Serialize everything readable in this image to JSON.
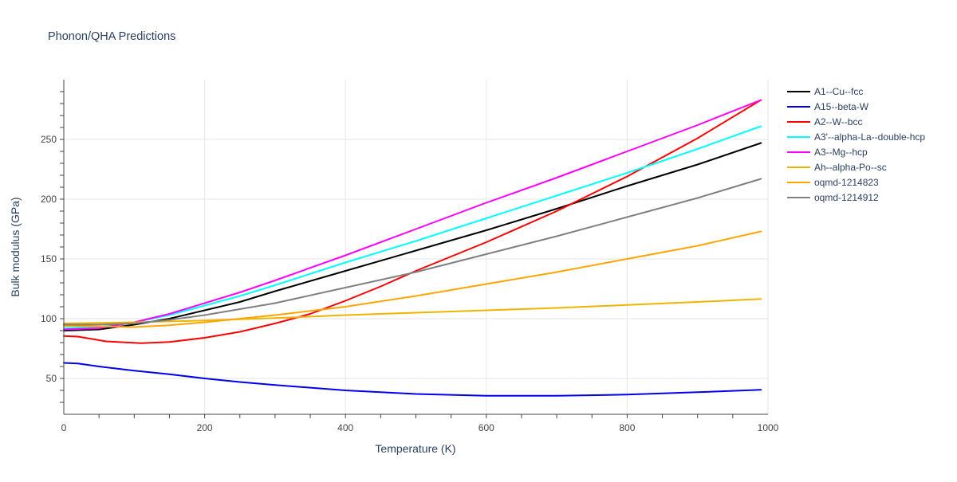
{
  "chart_data": {
    "type": "line",
    "title": "Phonon/QHA Predictions",
    "xlabel": "Temperature (K)",
    "ylabel": "Bulk modulus (GPa)",
    "xlim": [
      0,
      1000
    ],
    "ylim": [
      20,
      300
    ],
    "xticks": [
      0,
      200,
      400,
      600,
      800,
      1000
    ],
    "yticks": [
      50,
      100,
      150,
      200,
      250
    ],
    "grid": true,
    "legend_position": "top-right, outside plot",
    "series": [
      {
        "name": "A1--Cu--fcc",
        "color": "#000000",
        "points": [
          [
            0,
            90
          ],
          [
            50,
            91
          ],
          [
            100,
            95
          ],
          [
            150,
            100
          ],
          [
            200,
            107
          ],
          [
            250,
            114
          ],
          [
            300,
            123
          ],
          [
            400,
            140
          ],
          [
            500,
            157
          ],
          [
            600,
            174
          ],
          [
            700,
            192
          ],
          [
            800,
            211
          ],
          [
            900,
            229
          ],
          [
            990,
            247
          ]
        ]
      },
      {
        "name": "A15--beta-W",
        "color": "#0000ee",
        "points": [
          [
            0,
            63
          ],
          [
            20,
            62.5
          ],
          [
            50,
            60
          ],
          [
            100,
            56.5
          ],
          [
            150,
            53.5
          ],
          [
            200,
            50
          ],
          [
            250,
            47
          ],
          [
            300,
            44.5
          ],
          [
            400,
            40
          ],
          [
            500,
            37
          ],
          [
            600,
            35.5
          ],
          [
            700,
            35.5
          ],
          [
            800,
            36.5
          ],
          [
            900,
            38.5
          ],
          [
            990,
            40.5
          ]
        ]
      },
      {
        "name": "A2--W--bcc",
        "color": "#ff0000",
        "points": [
          [
            0,
            85.5
          ],
          [
            20,
            85
          ],
          [
            60,
            81
          ],
          [
            110,
            79.5
          ],
          [
            150,
            80.5
          ],
          [
            200,
            84
          ],
          [
            250,
            89
          ],
          [
            300,
            96
          ],
          [
            350,
            104
          ],
          [
            400,
            115
          ],
          [
            450,
            127
          ],
          [
            500,
            140
          ],
          [
            600,
            164
          ],
          [
            700,
            190
          ],
          [
            800,
            219
          ],
          [
            900,
            251
          ],
          [
            990,
            283
          ]
        ]
      },
      {
        "name": "A3'--alpha-La--double-hcp",
        "color": "#00ffff",
        "points": [
          [
            0,
            92
          ],
          [
            50,
            93
          ],
          [
            100,
            97
          ],
          [
            150,
            103
          ],
          [
            200,
            111
          ],
          [
            250,
            119
          ],
          [
            300,
            128
          ],
          [
            400,
            147
          ],
          [
            500,
            165
          ],
          [
            600,
            184
          ],
          [
            700,
            203
          ],
          [
            800,
            222
          ],
          [
            900,
            242
          ],
          [
            990,
            261
          ]
        ]
      },
      {
        "name": "A3--Mg--hcp",
        "color": "#ff00ff",
        "points": [
          [
            0,
            91
          ],
          [
            50,
            92
          ],
          [
            100,
            97
          ],
          [
            150,
            104
          ],
          [
            200,
            113
          ],
          [
            250,
            122
          ],
          [
            300,
            132
          ],
          [
            400,
            153
          ],
          [
            500,
            175
          ],
          [
            600,
            197
          ],
          [
            700,
            218
          ],
          [
            800,
            240
          ],
          [
            900,
            262
          ],
          [
            990,
            283
          ]
        ]
      },
      {
        "name": "Ah--alpha-Po--sc",
        "color": "#f0b400",
        "points": [
          [
            0,
            96
          ],
          [
            50,
            96.5
          ],
          [
            100,
            97
          ],
          [
            200,
            98.5
          ],
          [
            300,
            100.5
          ],
          [
            400,
            103
          ],
          [
            500,
            105
          ],
          [
            600,
            107
          ],
          [
            700,
            109
          ],
          [
            800,
            111.5
          ],
          [
            900,
            114
          ],
          [
            990,
            116.5
          ]
        ]
      },
      {
        "name": "oqmd-1214823",
        "color": "#ffa500",
        "points": [
          [
            0,
            94
          ],
          [
            50,
            93.5
          ],
          [
            100,
            93
          ],
          [
            150,
            94.5
          ],
          [
            200,
            97
          ],
          [
            300,
            103
          ],
          [
            400,
            110
          ],
          [
            500,
            119
          ],
          [
            600,
            129
          ],
          [
            700,
            139
          ],
          [
            800,
            150
          ],
          [
            900,
            161
          ],
          [
            990,
            173
          ]
        ]
      },
      {
        "name": "oqmd-1214912",
        "color": "#808080",
        "points": [
          [
            0,
            95
          ],
          [
            50,
            95
          ],
          [
            100,
            96
          ],
          [
            150,
            99
          ],
          [
            200,
            103
          ],
          [
            250,
            108
          ],
          [
            300,
            113
          ],
          [
            400,
            126
          ],
          [
            500,
            139
          ],
          [
            600,
            154
          ],
          [
            700,
            169
          ],
          [
            800,
            185
          ],
          [
            900,
            201
          ],
          [
            990,
            217
          ]
        ]
      }
    ]
  }
}
